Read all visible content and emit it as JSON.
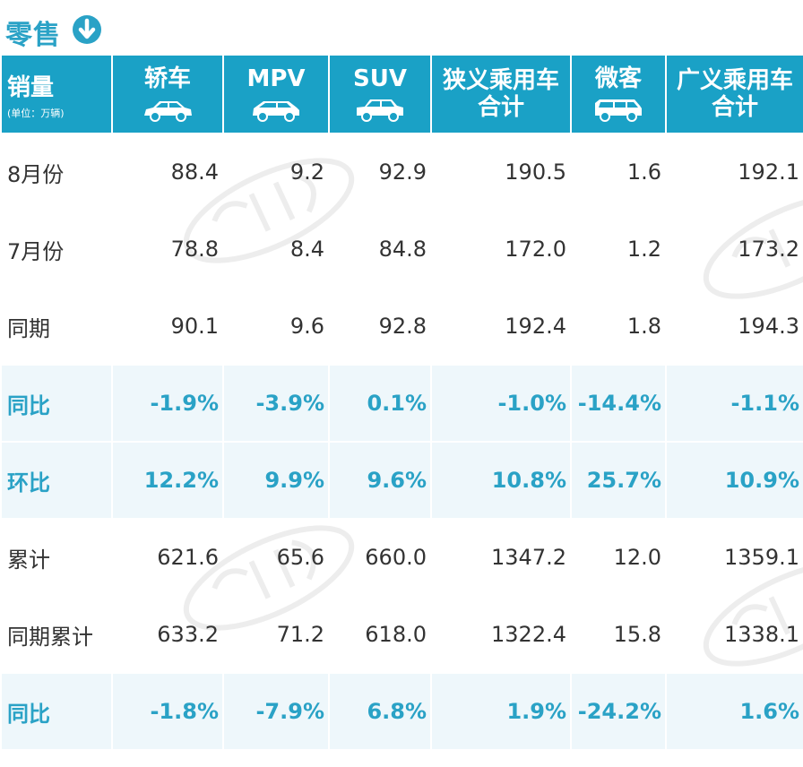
{
  "section": {
    "title": "零售"
  },
  "header": {
    "first_col": {
      "label": "销量",
      "unit": "(单位：万辆)"
    },
    "columns": [
      {
        "label": "轿车",
        "icon": "sedan-icon"
      },
      {
        "label": "MPV",
        "icon": "mpv-icon"
      },
      {
        "label": "SUV",
        "icon": "suv-icon"
      },
      {
        "label": "狭义乘用车合计"
      },
      {
        "label": "微客",
        "icon": "minivan-icon"
      },
      {
        "label": "广义乘用车合计"
      }
    ]
  },
  "rows": [
    {
      "label": "8月份",
      "values": [
        "88.4",
        "9.2",
        "92.9",
        "190.5",
        "1.6",
        "192.1"
      ]
    },
    {
      "label": "7月份",
      "values": [
        "78.8",
        "8.4",
        "84.8",
        "172.0",
        "1.2",
        "173.2"
      ]
    },
    {
      "label": "同期",
      "values": [
        "90.1",
        "9.6",
        "92.8",
        "192.4",
        "1.8",
        "194.3"
      ]
    },
    {
      "label": "同比",
      "values": [
        "-1.9%",
        "-3.9%",
        "0.1%",
        "-1.0%",
        "-14.4%",
        "-1.1%"
      ]
    },
    {
      "label": "环比",
      "values": [
        "12.2%",
        "9.9%",
        "9.6%",
        "10.8%",
        "25.7%",
        "10.9%"
      ]
    },
    {
      "label": "累计",
      "values": [
        "621.6",
        "65.6",
        "660.0",
        "1347.2",
        "12.0",
        "1359.1"
      ]
    },
    {
      "label": "同期累计",
      "values": [
        "633.2",
        "71.2",
        "618.0",
        "1322.4",
        "15.8",
        "1338.1"
      ]
    },
    {
      "label": "同比",
      "values": [
        "-1.8%",
        "-7.9%",
        "6.8%",
        "1.9%",
        "-24.2%",
        "1.6%"
      ]
    }
  ],
  "colors": {
    "accent": "#2aa2c6",
    "header_bg": "#1aa1c6",
    "highlight_row_bg": "#eef7fb",
    "text": "#333333"
  }
}
